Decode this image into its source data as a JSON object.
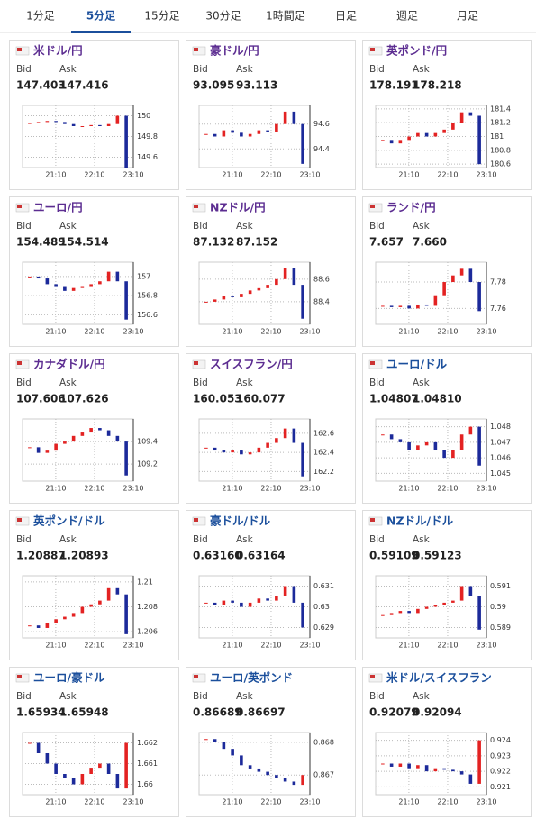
{
  "tabs": [
    "1分足",
    "5分足",
    "15分足",
    "30分足",
    "1時間足",
    "日足",
    "週足",
    "月足"
  ],
  "active_tab": 1,
  "labels": {
    "bid": "Bid",
    "ask": "Ask"
  },
  "time_labels": [
    "21:10",
    "22:10",
    "23:10"
  ],
  "up_color": "#e32222",
  "down_color": "#1c2a9a",
  "cards": [
    {
      "name": "米ドル/円",
      "name_color": "#5c2d91",
      "bid": "147.403",
      "ask": "147.416",
      "chart": {
        "type": "candlestick",
        "ylim": [
          149.5,
          150.1
        ],
        "yticks": [
          149.6,
          149.8,
          150
        ],
        "closes": [
          149.93,
          149.94,
          149.95,
          149.94,
          149.92,
          149.9,
          149.9,
          149.91,
          149.9,
          149.92,
          150.0,
          149.5
        ]
      }
    },
    {
      "name": "豪ドル/円",
      "name_color": "#5c2d91",
      "bid": "93.095",
      "ask": "93.113",
      "chart": {
        "type": "candlestick",
        "ylim": [
          94.25,
          94.75
        ],
        "yticks": [
          94.4,
          94.6
        ],
        "closes": [
          94.52,
          94.5,
          94.55,
          94.53,
          94.5,
          94.52,
          94.55,
          94.54,
          94.6,
          94.7,
          94.6,
          94.28
        ]
      }
    },
    {
      "name": "英ポンド/円",
      "name_color": "#5c2d91",
      "bid": "178.191",
      "ask": "178.218",
      "chart": {
        "type": "candlestick",
        "ylim": [
          180.55,
          181.45
        ],
        "yticks": [
          180.6,
          180.8,
          181,
          181.2,
          181.4
        ],
        "closes": [
          180.95,
          180.9,
          180.95,
          181.0,
          181.05,
          181.0,
          181.05,
          181.1,
          181.2,
          181.35,
          181.3,
          180.6
        ]
      }
    },
    {
      "name": "ユーロ/円",
      "name_color": "#5c2d91",
      "bid": "154.489",
      "ask": "154.514",
      "chart": {
        "type": "candlestick",
        "ylim": [
          156.5,
          157.15
        ],
        "yticks": [
          156.6,
          156.8,
          157
        ],
        "closes": [
          157.0,
          156.98,
          156.92,
          156.9,
          156.85,
          156.88,
          156.9,
          156.92,
          156.95,
          157.05,
          156.95,
          156.55
        ]
      }
    },
    {
      "name": "NZドル/円",
      "name_color": "#5c2d91",
      "bid": "87.132",
      "ask": "87.152",
      "chart": {
        "type": "candlestick",
        "ylim": [
          88.2,
          88.75
        ],
        "yticks": [
          88.4,
          88.6
        ],
        "closes": [
          88.4,
          88.42,
          88.45,
          88.44,
          88.47,
          88.5,
          88.52,
          88.55,
          88.6,
          88.7,
          88.55,
          88.25
        ]
      }
    },
    {
      "name": "ランド/円",
      "name_color": "#5c2d91",
      "bid": "7.657",
      "ask": "7.660",
      "chart": {
        "type": "candlestick",
        "ylim": [
          7.748,
          7.795
        ],
        "yticks": [
          7.76,
          7.78
        ],
        "closes": [
          7.762,
          7.761,
          7.762,
          7.76,
          7.763,
          7.762,
          7.77,
          7.78,
          7.785,
          7.79,
          7.78,
          7.758
        ]
      }
    },
    {
      "name": "カナダドル/円",
      "name_color": "#5c2d91",
      "bid": "107.606",
      "ask": "107.626",
      "chart": {
        "type": "candlestick",
        "ylim": [
          109.05,
          109.6
        ],
        "yticks": [
          109.2,
          109.4
        ],
        "closes": [
          109.35,
          109.3,
          109.32,
          109.38,
          109.4,
          109.45,
          109.48,
          109.52,
          109.5,
          109.45,
          109.4,
          109.1
        ]
      }
    },
    {
      "name": "スイスフラン/円",
      "name_color": "#5c2d91",
      "bid": "160.053",
      "ask": "160.077",
      "chart": {
        "type": "candlestick",
        "ylim": [
          162.1,
          162.75
        ],
        "yticks": [
          162.2,
          162.4,
          162.6
        ],
        "closes": [
          162.45,
          162.42,
          162.4,
          162.42,
          162.38,
          162.4,
          162.45,
          162.5,
          162.55,
          162.65,
          162.5,
          162.15
        ]
      }
    },
    {
      "name": "ユーロ/ドル",
      "name_color": "#1b4f9c",
      "bid": "1.04807",
      "ask": "1.04810",
      "chart": {
        "type": "candlestick",
        "ylim": [
          1.0445,
          1.0485
        ],
        "yticks": [
          1.045,
          1.046,
          1.047,
          1.048
        ],
        "closes": [
          1.0475,
          1.0472,
          1.047,
          1.0465,
          1.0468,
          1.047,
          1.0465,
          1.046,
          1.0465,
          1.0475,
          1.048,
          1.0455
        ]
      }
    },
    {
      "name": "英ポンド/ドル",
      "name_color": "#1b4f9c",
      "bid": "1.20887",
      "ask": "1.20893",
      "chart": {
        "type": "candlestick",
        "ylim": [
          1.2055,
          1.2105
        ],
        "yticks": [
          1.206,
          1.208,
          1.21
        ],
        "closes": [
          1.2065,
          1.2063,
          1.2067,
          1.207,
          1.2072,
          1.2075,
          1.208,
          1.2082,
          1.2085,
          1.2095,
          1.209,
          1.2058
        ]
      }
    },
    {
      "name": "豪ドル/ドル",
      "name_color": "#1b4f9c",
      "bid": "0.63160",
      "ask": "0.63164",
      "chart": {
        "type": "candlestick",
        "ylim": [
          0.6285,
          0.6315
        ],
        "yticks": [
          0.629,
          0.63,
          0.631
        ],
        "closes": [
          0.6302,
          0.6301,
          0.6303,
          0.6302,
          0.63,
          0.6302,
          0.6304,
          0.6303,
          0.6305,
          0.631,
          0.6302,
          0.629
        ]
      }
    },
    {
      "name": "NZドル/ドル",
      "name_color": "#1b4f9c",
      "bid": "0.59109",
      "ask": "0.59123",
      "chart": {
        "type": "candlestick",
        "ylim": [
          0.5885,
          0.5915
        ],
        "yticks": [
          0.589,
          0.59,
          0.591
        ],
        "closes": [
          0.5896,
          0.5897,
          0.5898,
          0.5897,
          0.5899,
          0.59,
          0.5901,
          0.5902,
          0.5903,
          0.591,
          0.5905,
          0.5889
        ]
      }
    },
    {
      "name": "ユーロ/豪ドル",
      "name_color": "#1b4f9c",
      "bid": "1.65934",
      "ask": "1.65948",
      "chart": {
        "type": "candlestick",
        "ylim": [
          1.6595,
          1.6625
        ],
        "yticks": [
          1.66,
          1.661,
          1.662
        ],
        "closes": [
          1.662,
          1.6615,
          1.661,
          1.6605,
          1.6603,
          1.66,
          1.6605,
          1.6608,
          1.661,
          1.6605,
          1.6598,
          1.662
        ]
      }
    },
    {
      "name": "ユーロ/英ポンド",
      "name_color": "#1b4f9c",
      "bid": "0.86689",
      "ask": "0.86697",
      "chart": {
        "type": "candlestick",
        "ylim": [
          0.8664,
          0.8683
        ],
        "yticks": [
          0.867,
          0.868
        ],
        "closes": [
          0.8681,
          0.868,
          0.8678,
          0.8676,
          0.8673,
          0.8672,
          0.8671,
          0.867,
          0.8669,
          0.8668,
          0.8667,
          0.867
        ]
      }
    },
    {
      "name": "米ドル/スイスフラン",
      "name_color": "#1b4f9c",
      "bid": "0.92079",
      "ask": "0.92094",
      "chart": {
        "type": "candlestick",
        "ylim": [
          0.9205,
          0.9245
        ],
        "yticks": [
          0.921,
          0.922,
          0.923,
          0.924
        ],
        "closes": [
          0.9225,
          0.9223,
          0.9225,
          0.9222,
          0.9224,
          0.922,
          0.9222,
          0.9221,
          0.922,
          0.9218,
          0.9212,
          0.924
        ]
      }
    }
  ]
}
